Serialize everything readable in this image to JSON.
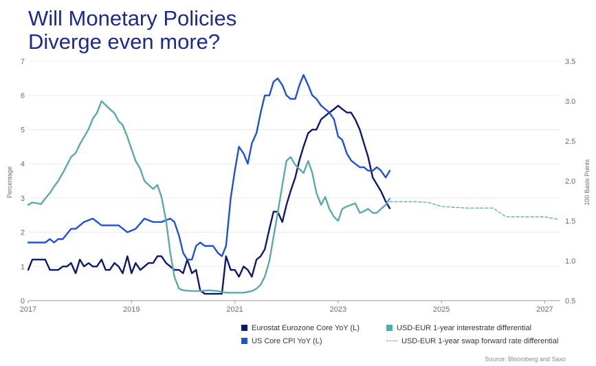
{
  "title_lines": [
    "Will Monetary Policies",
    "Diverge even more?"
  ],
  "source": "Source: Bloomberg and Saxo",
  "colors": {
    "eurozone": "#0b1770",
    "us_cpi": "#1d4fd8",
    "diff": "#5aa9a9",
    "axis": "#999999",
    "grid": "#e6e6e6"
  },
  "chart_data": {
    "type": "line",
    "title": "Will Monetary Policies Diverge even more?",
    "xlim": [
      2017,
      2027.3
    ],
    "x_ticks": [
      2017,
      2019,
      2021,
      2023,
      2025,
      2027
    ],
    "ylim_left": [
      0,
      7
    ],
    "ylim_right": [
      0.5,
      3.5
    ],
    "y_ticks_left": [
      "0",
      "1",
      "2",
      "3",
      "4",
      "5",
      "6",
      "7"
    ],
    "y_ticks_right": [
      "0.5",
      "1.0",
      "1.5",
      "2.0",
      "2.5",
      "3.0",
      "3.5"
    ],
    "ylabel_left": "Percentage",
    "ylabel_right": "100 Basis Points",
    "series": [
      {
        "name": "Eurostat Eurozone Core  YoY (L)",
        "axis": "left",
        "style": "solid",
        "color": "#0b1770",
        "x": [
          2017.0,
          2017.08,
          2017.17,
          2017.25,
          2017.33,
          2017.42,
          2017.5,
          2017.58,
          2017.67,
          2017.75,
          2017.83,
          2017.92,
          2018.0,
          2018.08,
          2018.17,
          2018.25,
          2018.33,
          2018.42,
          2018.5,
          2018.58,
          2018.67,
          2018.75,
          2018.83,
          2018.92,
          2019.0,
          2019.08,
          2019.17,
          2019.25,
          2019.33,
          2019.42,
          2019.5,
          2019.58,
          2019.67,
          2019.75,
          2019.83,
          2019.92,
          2020.0,
          2020.08,
          2020.17,
          2020.25,
          2020.33,
          2020.42,
          2020.5,
          2020.58,
          2020.67,
          2020.75,
          2020.83,
          2020.92,
          2021.0,
          2021.08,
          2021.17,
          2021.25,
          2021.33,
          2021.42,
          2021.5,
          2021.58,
          2021.67,
          2021.75,
          2021.83,
          2021.92,
          2022.0,
          2022.08,
          2022.17,
          2022.25,
          2022.33,
          2022.42,
          2022.5,
          2022.58,
          2022.67,
          2022.75,
          2022.83,
          2022.92,
          2023.0,
          2023.08,
          2023.17,
          2023.25,
          2023.33,
          2023.42,
          2023.5,
          2023.58,
          2023.67,
          2023.75,
          2023.83,
          2023.92,
          2024.0
        ],
        "y": [
          0.9,
          1.2,
          1.2,
          1.2,
          1.2,
          0.9,
          0.9,
          0.9,
          1.0,
          1.0,
          1.1,
          0.8,
          1.2,
          1.0,
          1.1,
          1.0,
          1.0,
          1.2,
          0.9,
          0.9,
          1.1,
          1.0,
          0.8,
          1.3,
          0.8,
          1.1,
          0.9,
          1.0,
          1.1,
          1.1,
          1.3,
          1.3,
          1.1,
          1.0,
          0.9,
          0.9,
          0.8,
          1.2,
          0.8,
          0.9,
          0.3,
          0.2,
          0.2,
          0.2,
          0.2,
          0.2,
          1.3,
          0.9,
          0.9,
          0.7,
          1.0,
          0.9,
          0.7,
          1.2,
          1.3,
          1.5,
          2.1,
          2.6,
          2.6,
          2.3,
          2.8,
          3.2,
          3.6,
          4.1,
          4.5,
          4.9,
          5.0,
          5.0,
          5.3,
          5.4,
          5.5,
          5.6,
          5.7,
          5.6,
          5.5,
          5.5,
          5.3,
          5.0,
          4.6,
          4.2,
          3.6,
          3.4,
          3.2,
          2.9,
          2.7
        ]
      },
      {
        "name": "US Core CPI YoY (L)",
        "axis": "left",
        "style": "solid",
        "color": "#1d4fd8",
        "x": [
          2017.0,
          2017.17,
          2017.33,
          2017.42,
          2017.5,
          2017.58,
          2017.67,
          2017.83,
          2017.92,
          2018.08,
          2018.25,
          2018.42,
          2018.58,
          2018.75,
          2018.92,
          2019.08,
          2019.25,
          2019.42,
          2019.58,
          2019.75,
          2019.83,
          2019.92,
          2020.0,
          2020.08,
          2020.17,
          2020.25,
          2020.33,
          2020.42,
          2020.5,
          2020.58,
          2020.67,
          2020.75,
          2020.83,
          2020.92,
          2021.0,
          2021.08,
          2021.17,
          2021.25,
          2021.33,
          2021.42,
          2021.5,
          2021.58,
          2021.67,
          2021.75,
          2021.83,
          2021.92,
          2022.0,
          2022.08,
          2022.17,
          2022.25,
          2022.33,
          2022.42,
          2022.5,
          2022.58,
          2022.67,
          2022.75,
          2022.83,
          2022.92,
          2023.0,
          2023.08,
          2023.17,
          2023.25,
          2023.33,
          2023.42,
          2023.5,
          2023.58,
          2023.67,
          2023.75,
          2023.83,
          2023.92,
          2024.0
        ],
        "y": [
          1.7,
          1.7,
          1.7,
          1.8,
          1.7,
          1.8,
          1.8,
          2.1,
          2.1,
          2.3,
          2.4,
          2.2,
          2.2,
          2.2,
          2.0,
          2.1,
          2.4,
          2.3,
          2.3,
          2.4,
          2.3,
          1.9,
          1.4,
          1.2,
          1.2,
          1.6,
          1.7,
          1.6,
          1.6,
          1.6,
          1.4,
          1.3,
          1.6,
          3.0,
          3.8,
          4.5,
          4.3,
          4.0,
          4.6,
          4.9,
          5.5,
          6.0,
          6.0,
          6.4,
          6.5,
          6.3,
          6.0,
          5.9,
          5.9,
          6.3,
          6.6,
          6.3,
          6.0,
          5.9,
          5.7,
          5.6,
          5.5,
          5.3,
          4.8,
          4.7,
          4.3,
          4.1,
          4.0,
          3.9,
          3.9,
          3.8,
          3.8,
          3.9,
          3.8,
          3.6,
          3.8
        ]
      },
      {
        "name": "USD-EUR 1-year interestrate differential",
        "axis": "right",
        "style": "solid",
        "color": "#5aa9a9",
        "x": [
          2017.0,
          2017.08,
          2017.17,
          2017.25,
          2017.33,
          2017.42,
          2017.5,
          2017.58,
          2017.67,
          2017.75,
          2017.83,
          2017.92,
          2018.0,
          2018.08,
          2018.17,
          2018.25,
          2018.33,
          2018.42,
          2018.5,
          2018.58,
          2018.67,
          2018.75,
          2018.83,
          2018.92,
          2019.0,
          2019.08,
          2019.17,
          2019.25,
          2019.33,
          2019.42,
          2019.5,
          2019.58,
          2019.67,
          2019.75,
          2019.83,
          2019.92,
          2020.0,
          2020.17,
          2020.33,
          2020.5,
          2020.67,
          2020.83,
          2021.0,
          2021.17,
          2021.33,
          2021.42,
          2021.5,
          2021.58,
          2021.67,
          2021.75,
          2021.83,
          2021.92,
          2022.0,
          2022.08,
          2022.17,
          2022.25,
          2022.33,
          2022.42,
          2022.5,
          2022.58,
          2022.67,
          2022.75,
          2022.83,
          2022.92,
          2023.0,
          2023.08,
          2023.17,
          2023.25,
          2023.33,
          2023.42,
          2023.5,
          2023.58,
          2023.67,
          2023.75,
          2023.83,
          2023.92,
          2024.0
        ],
        "y": [
          1.7,
          1.73,
          1.72,
          1.71,
          1.78,
          1.85,
          1.93,
          2.0,
          2.1,
          2.2,
          2.3,
          2.35,
          2.46,
          2.55,
          2.65,
          2.78,
          2.85,
          3.0,
          2.95,
          2.9,
          2.85,
          2.75,
          2.7,
          2.55,
          2.4,
          2.25,
          2.15,
          2.0,
          1.95,
          1.9,
          1.95,
          1.8,
          1.5,
          1.1,
          0.8,
          0.65,
          0.63,
          0.62,
          0.62,
          0.63,
          0.62,
          0.6,
          0.6,
          0.6,
          0.62,
          0.65,
          0.7,
          0.8,
          1.0,
          1.3,
          1.6,
          1.95,
          2.25,
          2.3,
          2.2,
          2.15,
          2.1,
          2.25,
          2.1,
          1.85,
          1.7,
          1.8,
          1.65,
          1.55,
          1.5,
          1.65,
          1.68,
          1.7,
          1.72,
          1.6,
          1.62,
          1.65,
          1.6,
          1.6,
          1.65,
          1.7,
          1.78
        ]
      },
      {
        "name": "USD-EUR 1-year swap forward rate differential",
        "axis": "right",
        "style": "dashed",
        "color": "#5aa9a9",
        "x": [
          2024.0,
          2024.25,
          2024.5,
          2024.75,
          2025.0,
          2025.25,
          2025.5,
          2025.75,
          2026.0,
          2026.25,
          2026.5,
          2026.75,
          2027.0,
          2027.25
        ],
        "y": [
          1.74,
          1.74,
          1.74,
          1.73,
          1.68,
          1.67,
          1.66,
          1.66,
          1.66,
          1.55,
          1.55,
          1.55,
          1.55,
          1.52
        ]
      }
    ]
  }
}
